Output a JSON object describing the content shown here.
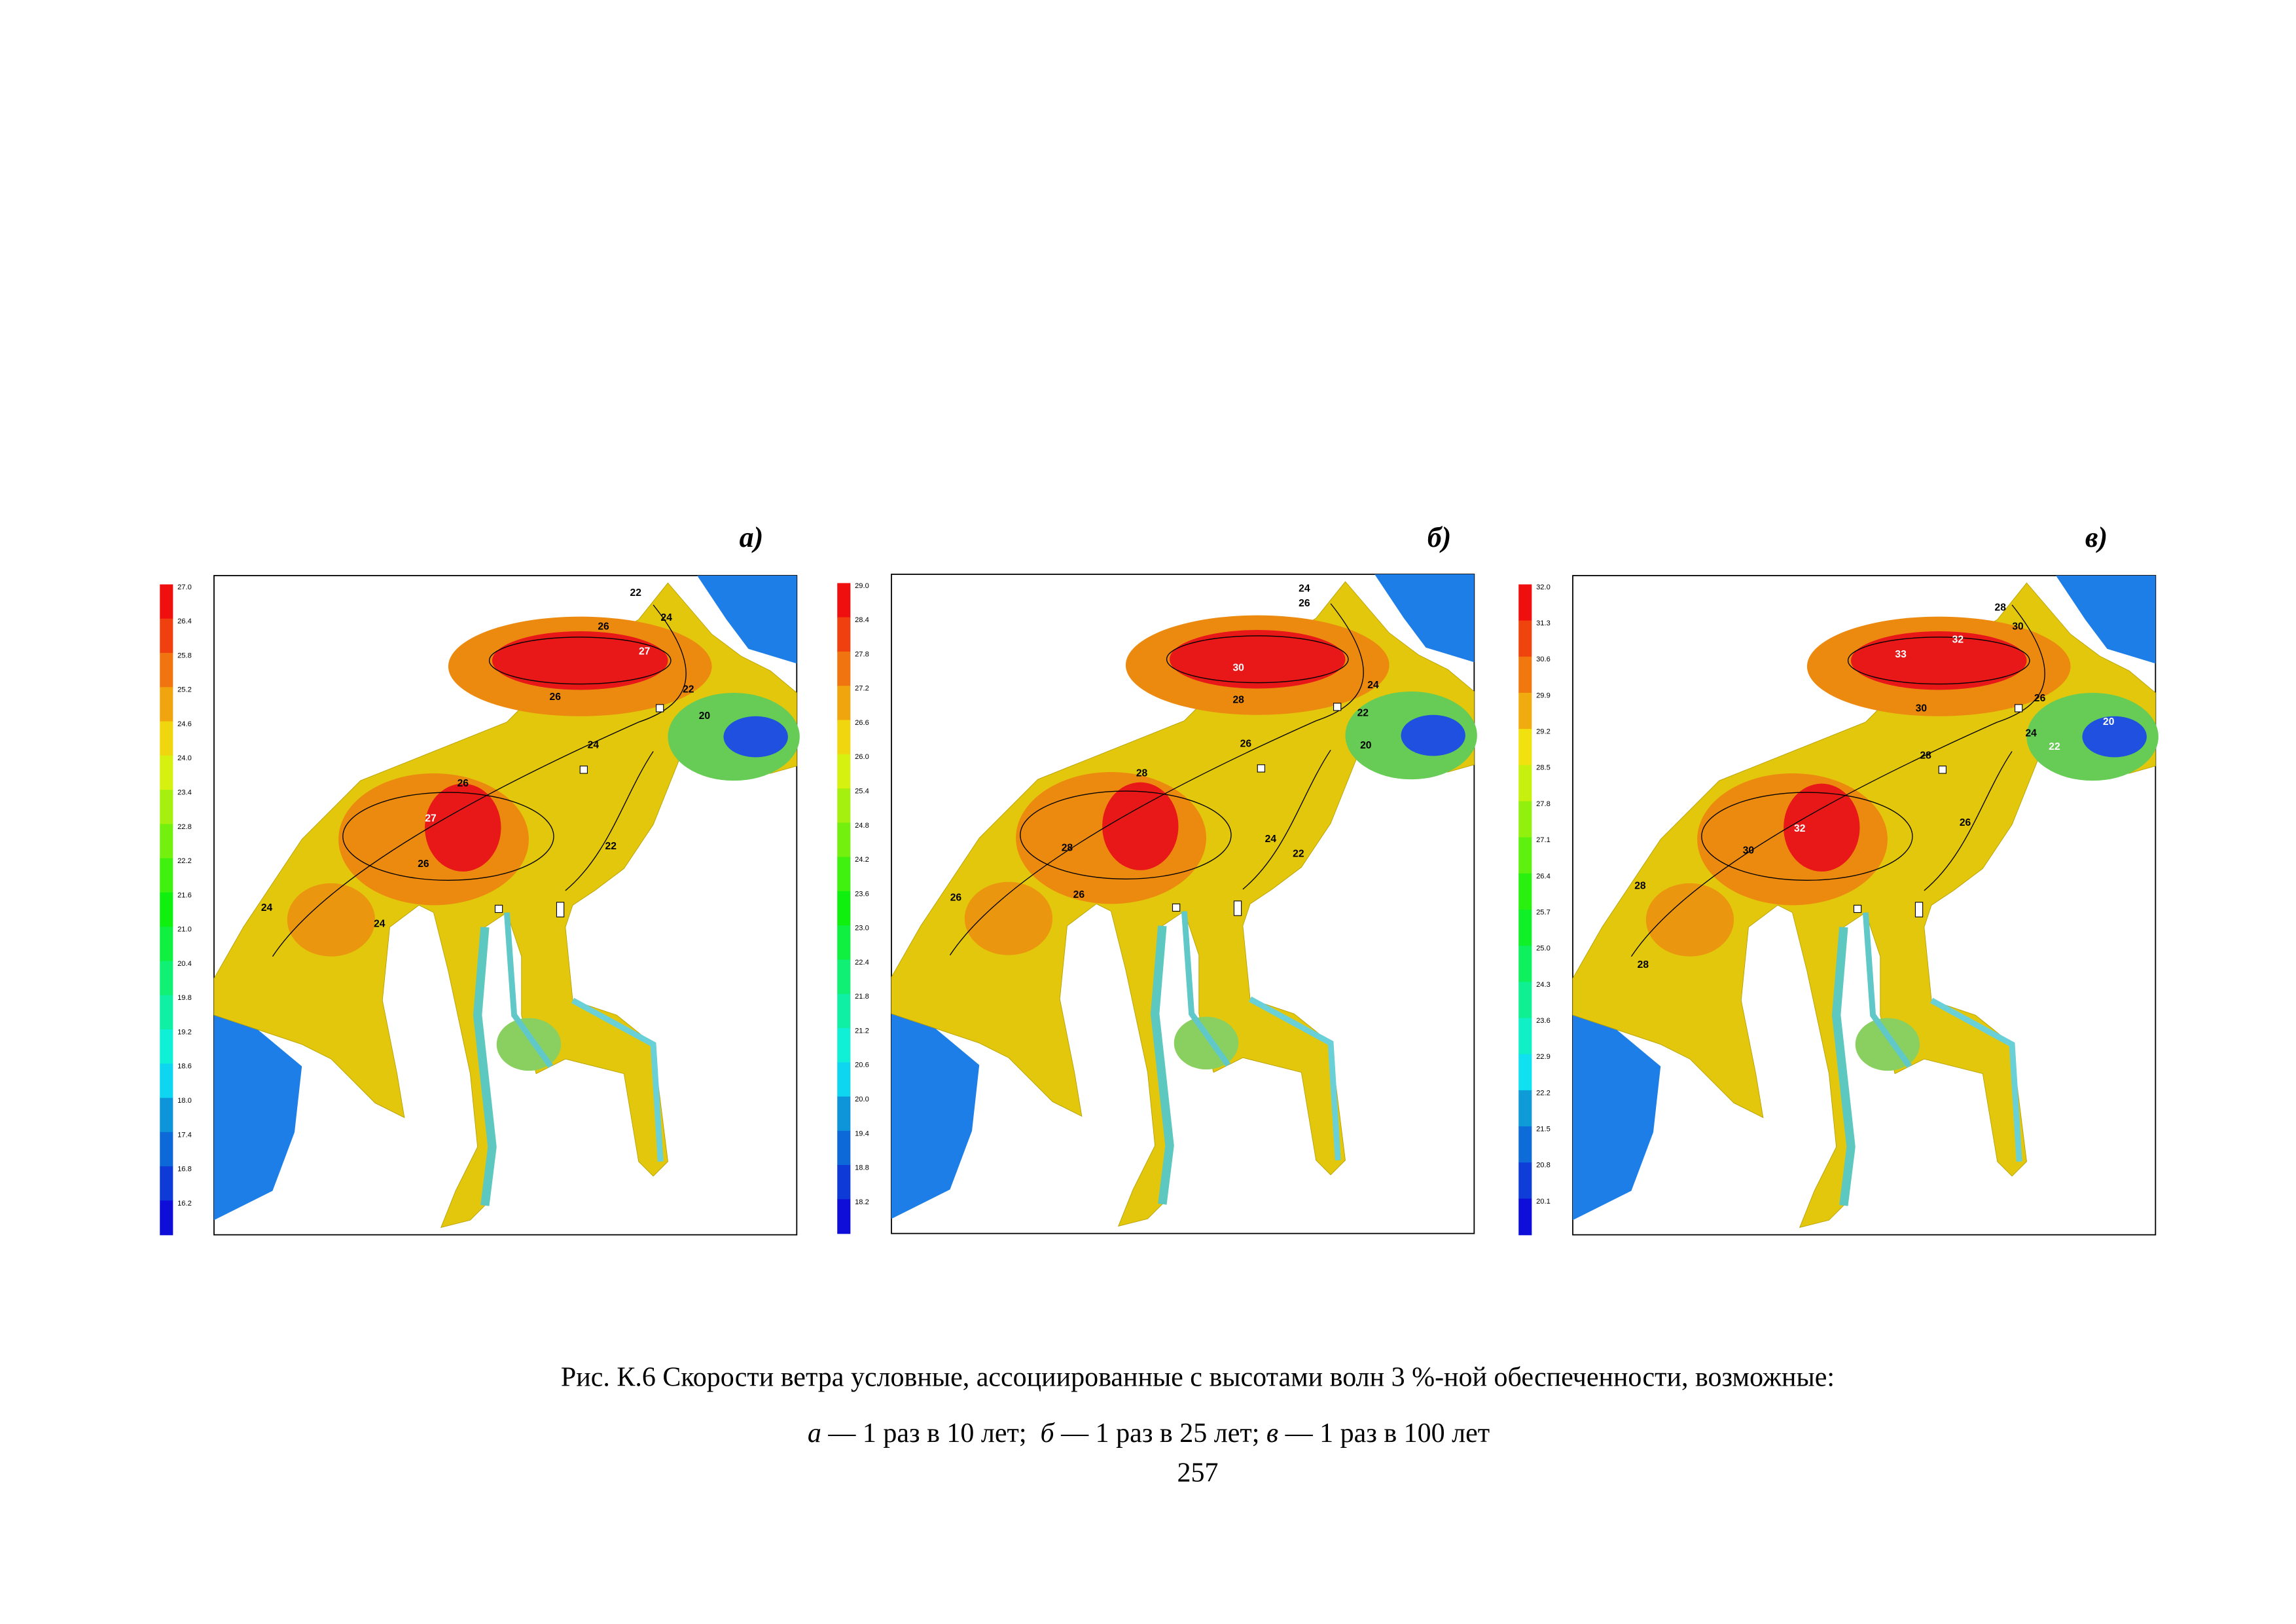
{
  "panels": [
    {
      "label": "а)",
      "legend": [
        "27.0",
        "26.4",
        "25.8",
        "25.2",
        "24.6",
        "24.0",
        "23.4",
        "22.8",
        "22.2",
        "21.6",
        "21.0",
        "20.4",
        "19.8",
        "19.2",
        "18.6",
        "18.0",
        "17.4",
        "16.8",
        "16.2"
      ],
      "contour_labels": [
        "22",
        "24",
        "26",
        "27",
        "26",
        "22",
        "20",
        "24",
        "26",
        "27",
        "26",
        "22",
        "24",
        "24"
      ]
    },
    {
      "label": "б)",
      "legend": [
        "29.0",
        "28.4",
        "27.8",
        "27.2",
        "26.6",
        "26.0",
        "25.4",
        "24.8",
        "24.2",
        "23.6",
        "23.0",
        "22.4",
        "21.8",
        "21.2",
        "20.6",
        "20.0",
        "19.4",
        "18.8",
        "18.2"
      ],
      "contour_labels": [
        "24",
        "26",
        "30",
        "24",
        "22",
        "28",
        "26",
        "20",
        "28",
        "28",
        "26",
        "26",
        "24",
        "22"
      ]
    },
    {
      "label": "в)",
      "legend": [
        "32.0",
        "31.3",
        "30.6",
        "29.9",
        "29.2",
        "28.5",
        "27.8",
        "27.1",
        "26.4",
        "25.7",
        "25.0",
        "24.3",
        "23.6",
        "22.9",
        "22.2",
        "21.5",
        "20.8",
        "20.1"
      ],
      "contour_labels": [
        "28",
        "30",
        "33",
        "32",
        "30",
        "26",
        "20",
        "24",
        "22",
        "28",
        "26",
        "32",
        "30",
        "28",
        "28"
      ]
    }
  ],
  "caption": {
    "line1": "Рис. К.6 Скорости ветра условные, ассоциированные с высотами волн 3 %-ной обеспеченности, возможные:",
    "line2": [
      {
        "letter": "а",
        "text": " — 1 раз в 10 лет;  "
      },
      {
        "letter": "б",
        "text": " — 1 раз в 25 лет; "
      },
      {
        "letter": "в",
        "text": " — 1 раз в 100 лет"
      }
    ]
  },
  "page_number": "257"
}
